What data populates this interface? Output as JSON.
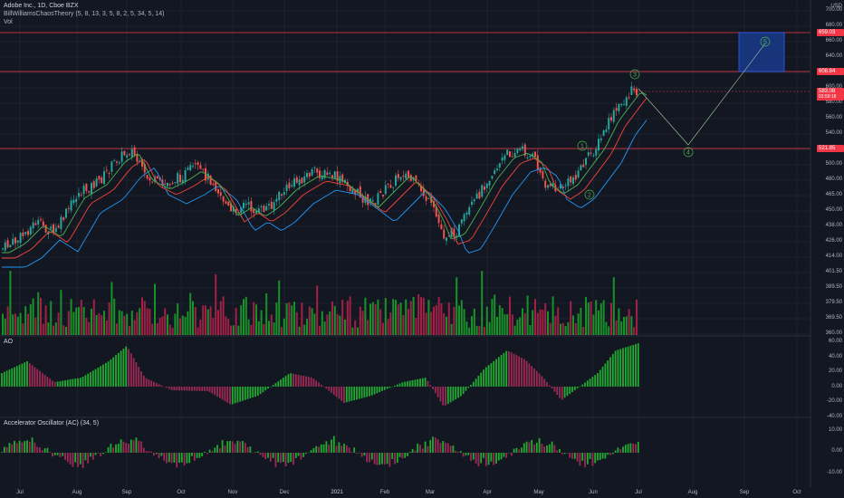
{
  "header": {
    "symbol_line": "Adobe Inc., 1D, Cboe BZX",
    "indicator_line": "BillWilliamsChaosTheory (5, 8, 13, 3, 5, 8, 2, 5, 34, 5, 14)",
    "vol_label": "Vol"
  },
  "currency": "USD",
  "price_axis": [
    "700.00",
    "680.00",
    "660.00",
    "640.00",
    "620.00",
    "600.00",
    "580.00",
    "560.00",
    "540.00",
    "520.00",
    "500.00",
    "480.00",
    "465.00",
    "450.00",
    "438.00",
    "426.00",
    "414.00",
    "401.50",
    "389.50",
    "379.50",
    "369.50",
    "360.00"
  ],
  "levels": {
    "target_high": {
      "value": "659.03",
      "color": "#f23645"
    },
    "resistance": {
      "value": "608.84",
      "color": "#f23645"
    },
    "support": {
      "value": "521.85",
      "color": "#f23645"
    },
    "last_price": {
      "value": "583.08",
      "countdown": "03:59:18",
      "color": "#f23645"
    }
  },
  "wave_labels": [
    "1",
    "2",
    "3",
    "4",
    "5"
  ],
  "ao_pane": {
    "label": "AO",
    "ticks": [
      "60.00",
      "40.00",
      "20.00",
      "0.00",
      "-20.00",
      "-40.00"
    ]
  },
  "ac_pane": {
    "label": "Accelerator Oscillator (AC) (34, 5)",
    "ticks": [
      "10.00",
      "0.00",
      "-10.00"
    ]
  },
  "time_axis": [
    "Jul",
    "Aug",
    "Sep",
    "Oct",
    "Nov",
    "Dec",
    "2021",
    "Feb",
    "Mar",
    "Apr",
    "May",
    "Jun",
    "Jul",
    "Aug",
    "Sep",
    "Oct"
  ],
  "colors": {
    "background": "#131722",
    "up": "#26a69a",
    "down": "#ef5350",
    "ao_up": "#22ab31",
    "ao_down": "#9c2a55",
    "target_box": "#1a3a8a"
  }
}
